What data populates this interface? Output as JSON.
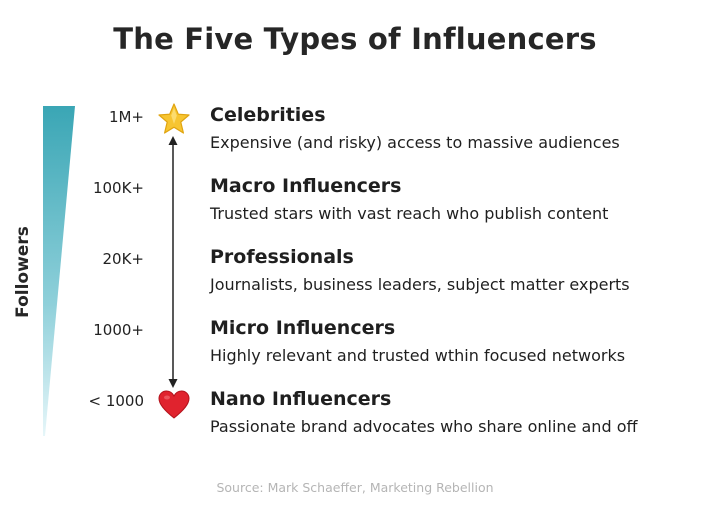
{
  "title": "The Five Types of Influencers",
  "axis_label": "Followers",
  "tiers": [
    {
      "count": "1M+",
      "name": "Celebrities",
      "description": "Expensive (and risky) access to massive audiences"
    },
    {
      "count": "100K+",
      "name": "Macro Influencers",
      "description": "Trusted stars with vast reach who publish content"
    },
    {
      "count": "20K+",
      "name": "Professionals",
      "description": "Journalists, business leaders, subject matter experts"
    },
    {
      "count": "1000+",
      "name": "Micro Influencers",
      "description": "Highly relevant and trusted wthin focused networks"
    },
    {
      "count": "< 1000",
      "name": "Nano Influencers",
      "description": "Passionate brand advocates who share online and off"
    }
  ],
  "icons": {
    "top": "star-icon",
    "bottom": "heart-icon"
  },
  "colors": {
    "gradient_top": "#3aa6b5",
    "gradient_bottom": "#e6f6f9",
    "star": "#f7c531",
    "heart": "#e0232e"
  },
  "source": "Source: Mark Schaeffer, Marketing Rebellion"
}
